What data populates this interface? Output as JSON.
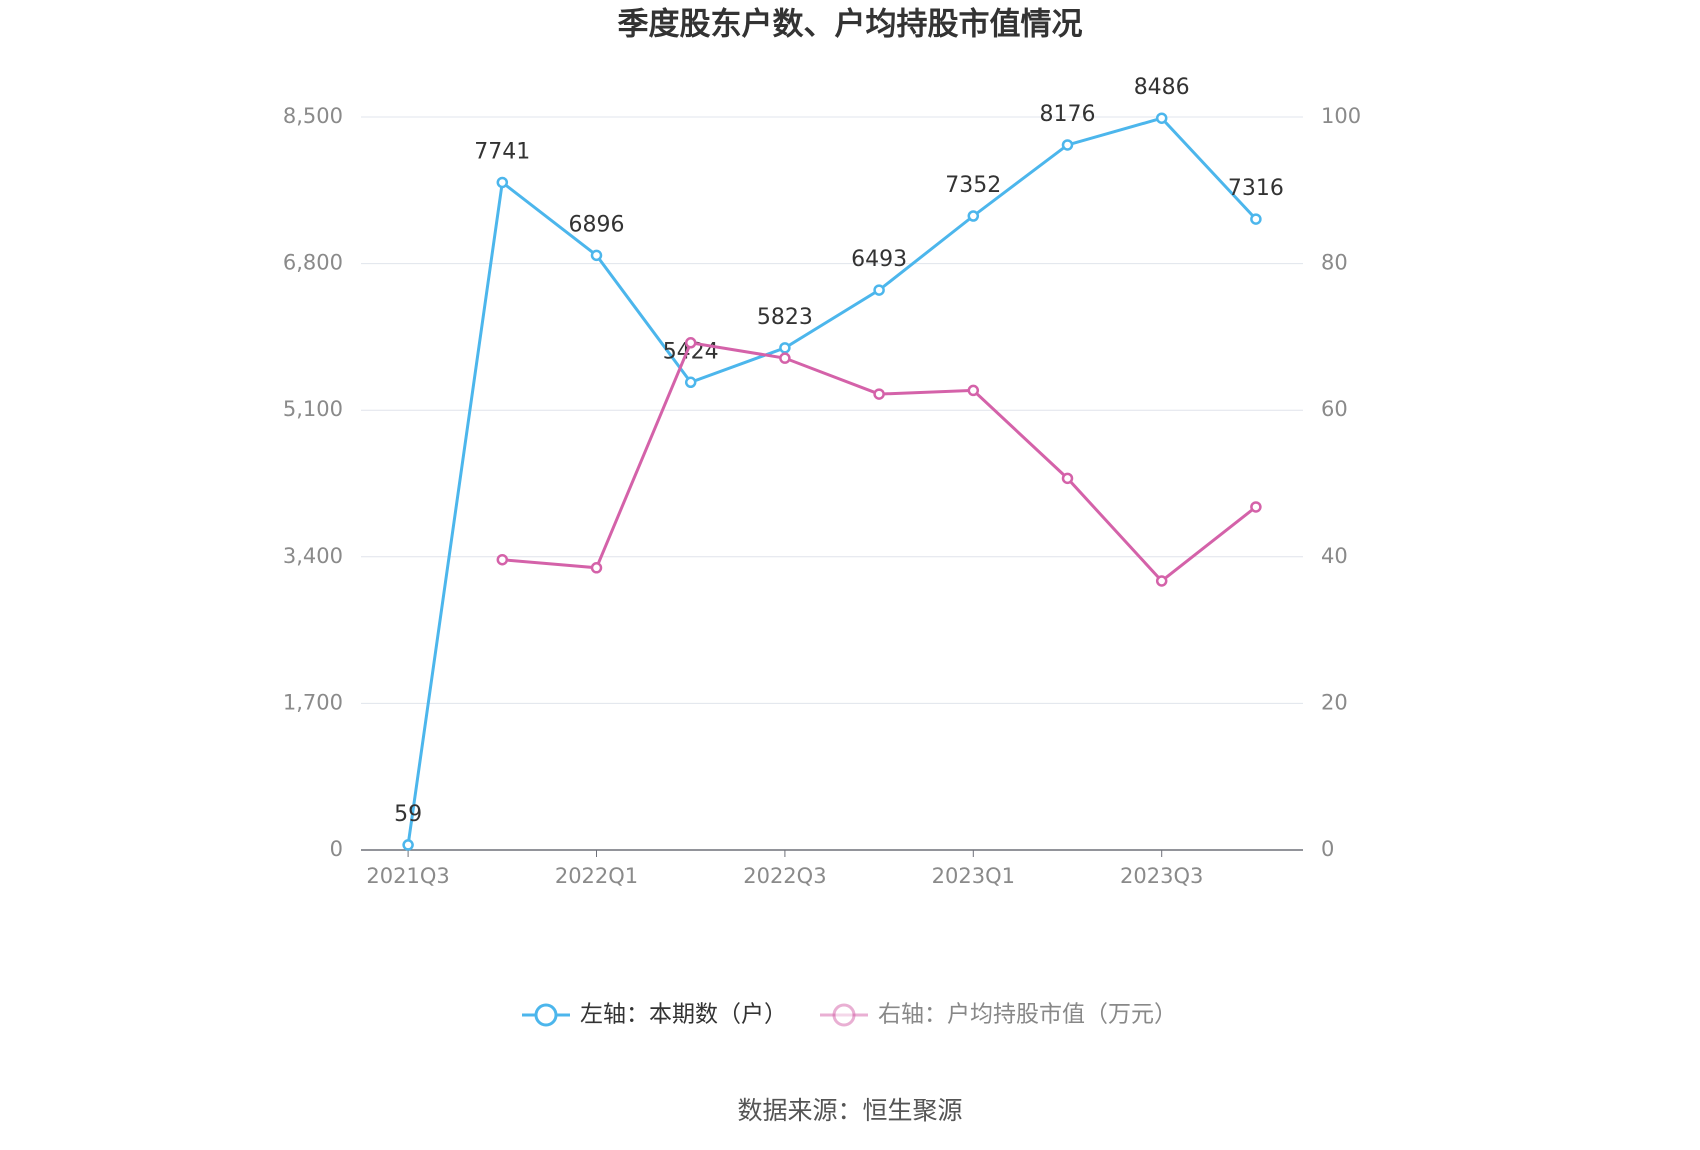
{
  "chart_data": {
    "type": "line",
    "title": "季度股东户数、户均持股市值情况",
    "categories": [
      "2021Q3",
      null,
      "2022Q1",
      null,
      "2022Q3",
      null,
      "2023Q1",
      null,
      "2023Q3",
      null
    ],
    "series": [
      {
        "name": "左轴：本期数（户）",
        "color": "#4cb6ec",
        "values": [
          59,
          7741,
          6896,
          5424,
          5823,
          6493,
          7352,
          8176,
          8486,
          7316
        ]
      },
      {
        "name": "右轴：户均持股市值（万元）",
        "color": "#d462a9",
        "axis": "y2",
        "values": [
          null,
          39.6,
          38.5,
          69.2,
          67.1,
          62.2,
          62.7,
          50.7,
          36.7,
          46.8
        ]
      }
    ],
    "ylim": [
      0,
      8500
    ],
    "yticks": [
      0,
      {
        "value": 1700,
        "label": "1,700"
      },
      {
        "value": 3400,
        "label": "3,400"
      },
      {
        "value": 5100,
        "label": "5,100"
      },
      {
        "value": 6800,
        "label": "6,800"
      },
      {
        "value": 8500,
        "label": "8,500"
      }
    ],
    "y2lim": [
      0,
      100
    ],
    "y2ticks": [
      0,
      20,
      40,
      60,
      80,
      100
    ],
    "grid": true,
    "legend": "bottom",
    "source": "数据来源：恒生聚源"
  }
}
